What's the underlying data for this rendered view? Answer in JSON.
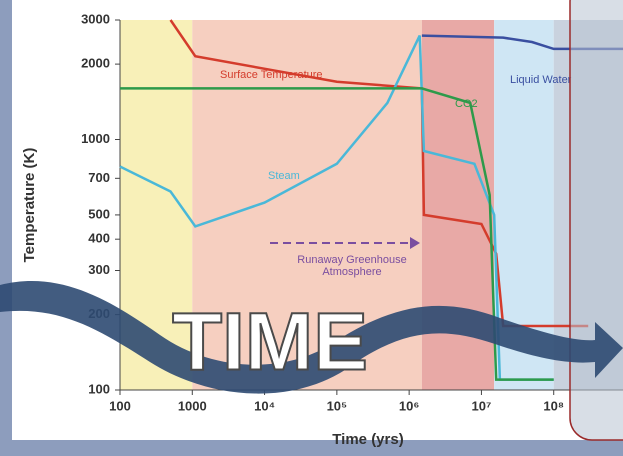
{
  "chart_data": {
    "type": "line",
    "xlabel": "Time (yrs)",
    "ylabel": "Temperature (K)",
    "xlog": true,
    "ylog": true,
    "xlim": [
      100,
      1000000000
    ],
    "ylim": [
      100,
      3000
    ],
    "xticks": [
      100,
      1000,
      {
        "value": 10000,
        "label": "10⁴"
      },
      {
        "value": 100000,
        "label": "10⁵"
      },
      {
        "value": 1000000,
        "label": "10⁶"
      },
      {
        "value": 10000000,
        "label": "10⁷"
      },
      {
        "value": 100000000,
        "label": "10⁸"
      }
    ],
    "yticks": [
      100,
      200,
      300,
      400,
      500,
      700,
      1000,
      2000,
      3000
    ],
    "regions": [
      {
        "from": 100,
        "to": 1000,
        "color": "#f8f0b8"
      },
      {
        "from": 1000,
        "to": 1500000,
        "color": "#f6cfc0"
      },
      {
        "from": 1500000,
        "to": 15000000,
        "color": "#e8a9a6"
      },
      {
        "from": 15000000,
        "to": 100000000,
        "color": "#cfe6f4"
      },
      {
        "from": 100000000,
        "to": 1000000000,
        "color": "#c9d2de"
      }
    ],
    "series": [
      {
        "name": "Surface Temperature",
        "color": "#d43c2c",
        "x": [
          500,
          1100,
          100000,
          1500000,
          1600000,
          10000000,
          16000000,
          20000000,
          100000000,
          300000000
        ],
        "values": [
          3000,
          2150,
          1700,
          1600,
          500,
          460,
          350,
          180,
          180,
          180
        ]
      },
      {
        "name": "Steam",
        "color": "#4ab8d8",
        "x": [
          100,
          500,
          1100,
          10000,
          100000,
          500000,
          1400000,
          1600000,
          8000000,
          15000000,
          18000000,
          100000000
        ],
        "values": [
          780,
          620,
          450,
          560,
          800,
          1400,
          2600,
          900,
          800,
          500,
          110,
          110
        ]
      },
      {
        "name": "CO2",
        "color": "#2e9a4a",
        "x": [
          100,
          1500000,
          7000000,
          13000000,
          16000000,
          100000000
        ],
        "values": [
          1600,
          1600,
          1400,
          600,
          110,
          110
        ]
      },
      {
        "name": "Liquid Water",
        "color": "#3a4fa0",
        "x": [
          1500000,
          20000000,
          50000000,
          100000000,
          1000000000
        ],
        "values": [
          2600,
          2550,
          2450,
          2300,
          2300
        ]
      }
    ],
    "annotations": [
      "Runaway Greenhouse",
      "Atmosphere"
    ],
    "overlay": "TIME"
  }
}
